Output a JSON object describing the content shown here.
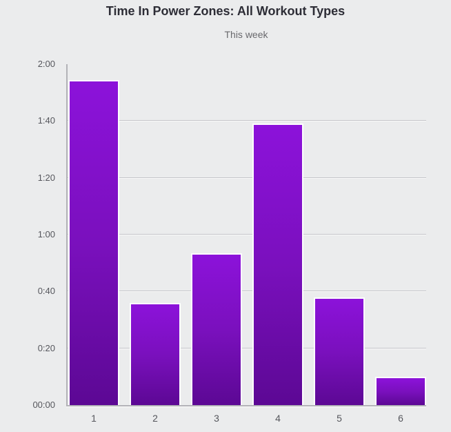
{
  "chart": {
    "title": "Time In Power Zones: All Workout Types",
    "subtitle": "This week"
  },
  "chart_data": {
    "type": "bar",
    "title": "Time In Power Zones: All Workout Types",
    "subtitle": "This week",
    "xlabel": "",
    "ylabel": "",
    "categories": [
      "1",
      "2",
      "3",
      "4",
      "5",
      "6"
    ],
    "values_minutes": [
      114.5,
      36,
      53.5,
      99,
      38,
      10
    ],
    "values_time": [
      "1:54",
      "0:36",
      "0:53",
      "1:39",
      "0:38",
      "0:10"
    ],
    "y_axis": {
      "unit": "h:mm",
      "min_minutes": 0,
      "max_minutes": 120,
      "tick_interval_minutes": 20,
      "tick_labels": [
        "00:00",
        "0:20",
        "0:40",
        "1:00",
        "1:20",
        "1:40",
        "2:00"
      ]
    },
    "grid": "horizontal-only",
    "legend": "none",
    "bar_color_top": "#8c12da",
    "bar_color_bottom": "#5c0894"
  },
  "colors": {
    "background": "#ebeced",
    "bar_gradient_top": "#8c12da",
    "bar_gradient_bottom": "#5c0894",
    "bar_border": "#fdfdfe",
    "gridline": "#c4c4c9",
    "axis_line": "#b2b2b7",
    "title_text": "#2d2d36",
    "subtitle_text": "#68686c",
    "tick_text": "#55565c"
  }
}
